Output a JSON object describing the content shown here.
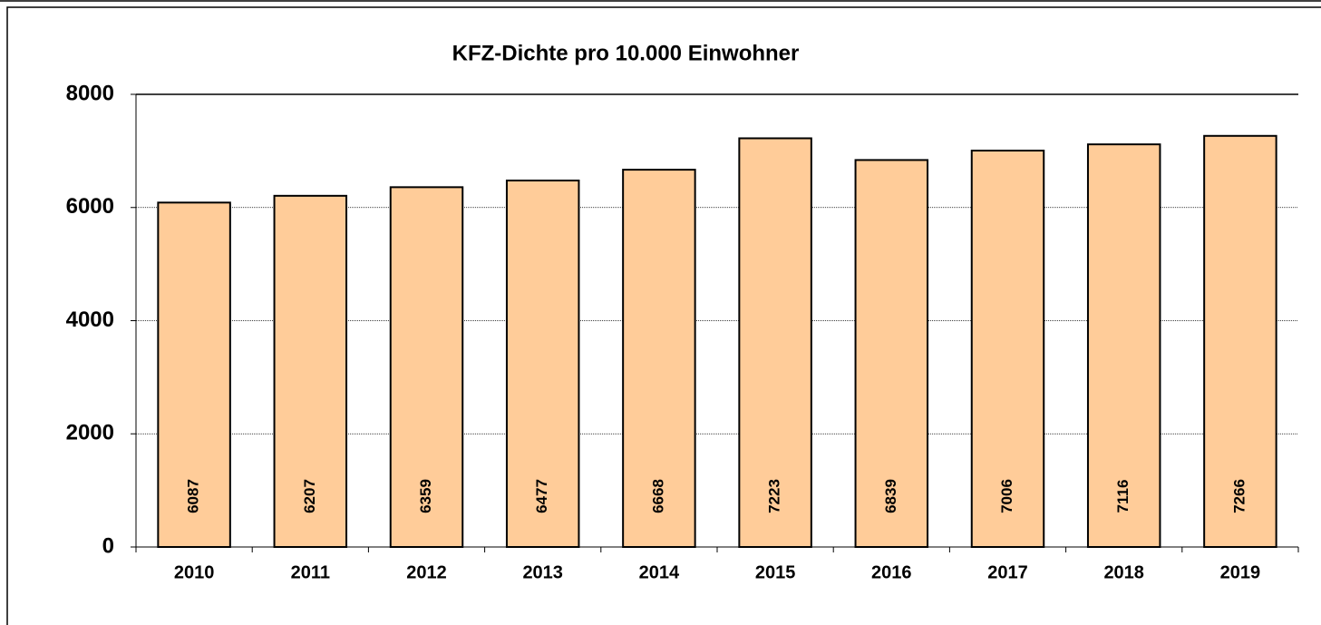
{
  "chart_data": {
    "type": "bar",
    "title": "KFZ-Dichte pro 10.000 Einwohner",
    "categories": [
      "2010",
      "2011",
      "2012",
      "2013",
      "2014",
      "2015",
      "2016",
      "2017",
      "2018",
      "2019"
    ],
    "values": [
      6087,
      6207,
      6359,
      6477,
      6668,
      7223,
      6839,
      7006,
      7116,
      7266
    ],
    "color": "#ffcc99",
    "ylim": [
      0,
      8000
    ],
    "yticks": [
      0,
      2000,
      4000,
      6000,
      8000
    ],
    "grid": true
  }
}
